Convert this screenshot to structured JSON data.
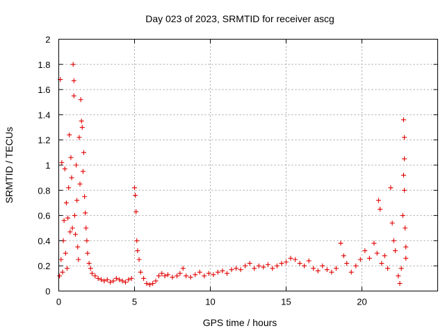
{
  "chart_data": {
    "type": "scatter",
    "title": "Day 023 of 2023, SRMTID for receiver ascg",
    "xlabel": "GPS time / hours",
    "ylabel": "SRMTID / TECUs",
    "xlim": [
      0,
      25
    ],
    "ylim": [
      0,
      2
    ],
    "xticks": [
      0,
      5,
      10,
      15,
      20
    ],
    "yticks": [
      0,
      0.2,
      0.4,
      0.6,
      0.8,
      1,
      1.2,
      1.4,
      1.6,
      1.8,
      2
    ],
    "xtick_labels": [
      "0",
      "5",
      "10",
      "15",
      "20"
    ],
    "ytick_labels": [
      "0",
      "0.2",
      "0.4",
      "0.6",
      "0.8",
      "1",
      "1.2",
      "1.4",
      "1.6",
      "1.8",
      "2"
    ],
    "grid": true,
    "marker": "+",
    "color": "#e00000",
    "series": [
      {
        "name": "SRMTID",
        "points": [
          [
            0.05,
            0.12
          ],
          [
            0.1,
            1.68
          ],
          [
            0.15,
            0.25
          ],
          [
            0.2,
            1.02
          ],
          [
            0.25,
            0.15
          ],
          [
            0.3,
            0.4
          ],
          [
            0.35,
            0.56
          ],
          [
            0.4,
            0.97
          ],
          [
            0.45,
            0.3
          ],
          [
            0.5,
            0.7
          ],
          [
            0.55,
            0.18
          ],
          [
            0.6,
            0.58
          ],
          [
            0.65,
            0.82
          ],
          [
            0.7,
            1.24
          ],
          [
            0.75,
            0.47
          ],
          [
            0.8,
            1.06
          ],
          [
            0.85,
            0.9
          ],
          [
            0.9,
            0.5
          ],
          [
            0.95,
            1.8
          ],
          [
            1.0,
            1.67
          ],
          [
            1.0,
            1.55
          ],
          [
            1.05,
            0.6
          ],
          [
            1.1,
            0.45
          ],
          [
            1.15,
            1.0
          ],
          [
            1.2,
            0.72
          ],
          [
            1.25,
            0.35
          ],
          [
            1.3,
            0.25
          ],
          [
            1.35,
            1.22
          ],
          [
            1.4,
            0.85
          ],
          [
            1.45,
            1.52
          ],
          [
            1.5,
            1.35
          ],
          [
            1.55,
            1.3
          ],
          [
            1.6,
            0.95
          ],
          [
            1.65,
            1.1
          ],
          [
            1.7,
            0.75
          ],
          [
            1.75,
            0.62
          ],
          [
            1.8,
            0.5
          ],
          [
            1.85,
            0.4
          ],
          [
            1.9,
            0.3
          ],
          [
            2.0,
            0.22
          ],
          [
            2.1,
            0.18
          ],
          [
            2.2,
            0.14
          ],
          [
            2.4,
            0.12
          ],
          [
            2.6,
            0.1
          ],
          [
            2.8,
            0.09
          ],
          [
            3.0,
            0.08
          ],
          [
            3.2,
            0.09
          ],
          [
            3.4,
            0.07
          ],
          [
            3.6,
            0.08
          ],
          [
            3.8,
            0.1
          ],
          [
            4.0,
            0.09
          ],
          [
            4.2,
            0.08
          ],
          [
            4.4,
            0.07
          ],
          [
            4.6,
            0.09
          ],
          [
            4.8,
            0.1
          ],
          [
            5.0,
            0.82
          ],
          [
            5.05,
            0.76
          ],
          [
            5.1,
            0.63
          ],
          [
            5.15,
            0.4
          ],
          [
            5.2,
            0.32
          ],
          [
            5.3,
            0.25
          ],
          [
            5.4,
            0.15
          ],
          [
            5.6,
            0.1
          ],
          [
            5.8,
            0.06
          ],
          [
            6.0,
            0.05
          ],
          [
            6.2,
            0.06
          ],
          [
            6.4,
            0.08
          ],
          [
            6.6,
            0.12
          ],
          [
            6.8,
            0.14
          ],
          [
            7.0,
            0.12
          ],
          [
            7.2,
            0.13
          ],
          [
            7.5,
            0.11
          ],
          [
            7.8,
            0.12
          ],
          [
            8.0,
            0.14
          ],
          [
            8.2,
            0.18
          ],
          [
            8.4,
            0.12
          ],
          [
            8.7,
            0.11
          ],
          [
            9.0,
            0.13
          ],
          [
            9.3,
            0.15
          ],
          [
            9.6,
            0.12
          ],
          [
            9.9,
            0.14
          ],
          [
            10.2,
            0.13
          ],
          [
            10.5,
            0.15
          ],
          [
            10.8,
            0.16
          ],
          [
            11.1,
            0.14
          ],
          [
            11.4,
            0.17
          ],
          [
            11.7,
            0.18
          ],
          [
            12.0,
            0.17
          ],
          [
            12.3,
            0.2
          ],
          [
            12.6,
            0.22
          ],
          [
            12.9,
            0.18
          ],
          [
            13.2,
            0.2
          ],
          [
            13.5,
            0.19
          ],
          [
            13.8,
            0.21
          ],
          [
            14.1,
            0.18
          ],
          [
            14.4,
            0.2
          ],
          [
            14.7,
            0.22
          ],
          [
            15.0,
            0.23
          ],
          [
            15.3,
            0.26
          ],
          [
            15.6,
            0.25
          ],
          [
            15.9,
            0.22
          ],
          [
            16.2,
            0.2
          ],
          [
            16.5,
            0.24
          ],
          [
            16.8,
            0.18
          ],
          [
            17.1,
            0.16
          ],
          [
            17.4,
            0.2
          ],
          [
            17.7,
            0.17
          ],
          [
            18.0,
            0.15
          ],
          [
            18.3,
            0.18
          ],
          [
            18.6,
            0.38
          ],
          [
            18.8,
            0.28
          ],
          [
            19.0,
            0.22
          ],
          [
            19.3,
            0.15
          ],
          [
            19.6,
            0.2
          ],
          [
            19.9,
            0.25
          ],
          [
            20.2,
            0.32
          ],
          [
            20.5,
            0.26
          ],
          [
            20.8,
            0.38
          ],
          [
            21.0,
            0.3
          ],
          [
            21.1,
            0.72
          ],
          [
            21.2,
            0.65
          ],
          [
            21.3,
            0.22
          ],
          [
            21.5,
            0.28
          ],
          [
            21.7,
            0.18
          ],
          [
            21.9,
            0.82
          ],
          [
            22.0,
            0.54
          ],
          [
            22.1,
            0.4
          ],
          [
            22.2,
            0.32
          ],
          [
            22.4,
            0.12
          ],
          [
            22.5,
            0.06
          ],
          [
            22.6,
            0.18
          ],
          [
            22.7,
            0.6
          ],
          [
            22.75,
            1.36
          ],
          [
            22.8,
            1.22
          ],
          [
            22.8,
            1.05
          ],
          [
            22.75,
            0.92
          ],
          [
            22.8,
            0.8
          ],
          [
            22.85,
            0.5
          ],
          [
            22.9,
            0.35
          ],
          [
            22.9,
            0.26
          ]
        ]
      }
    ]
  }
}
